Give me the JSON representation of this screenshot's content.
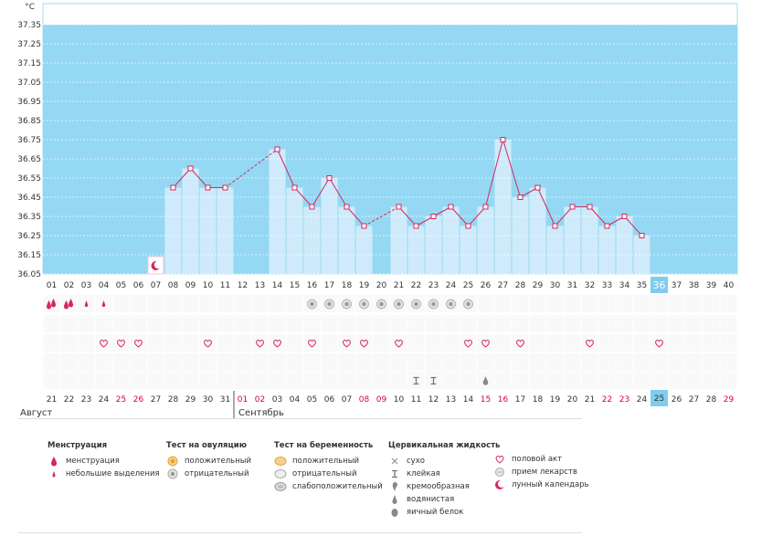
{
  "chart_data": {
    "type": "bar",
    "unit_label": "°C",
    "y_ticks": [
      "36.05",
      "36.15",
      "36.25",
      "36.35",
      "36.45",
      "36.55",
      "36.65",
      "36.75",
      "36.85",
      "36.95",
      "37.05",
      "37.15",
      "37.25",
      "37.35"
    ],
    "ylim": [
      36.05,
      37.35
    ],
    "cycle_days": [
      "01",
      "02",
      "03",
      "04",
      "05",
      "06",
      "07",
      "08",
      "09",
      "10",
      "11",
      "12",
      "13",
      "14",
      "15",
      "16",
      "17",
      "18",
      "19",
      "20",
      "21",
      "22",
      "23",
      "24",
      "25",
      "26",
      "27",
      "28",
      "29",
      "30",
      "31",
      "32",
      "33",
      "34",
      "35",
      "36",
      "37",
      "38",
      "39",
      "40"
    ],
    "current_cycle_day_index": 35,
    "temperatures": [
      null,
      null,
      null,
      null,
      null,
      null,
      null,
      36.5,
      36.6,
      36.5,
      36.5,
      null,
      null,
      36.7,
      36.5,
      36.4,
      36.55,
      36.4,
      36.3,
      null,
      36.4,
      36.3,
      36.35,
      36.4,
      36.3,
      36.4,
      36.75,
      36.45,
      36.5,
      36.3,
      36.4,
      36.4,
      36.3,
      36.35,
      36.25,
      null,
      null,
      null,
      null,
      null
    ],
    "moon_day_index": 6,
    "dates": [
      "21",
      "22",
      "23",
      "24",
      "25",
      "26",
      "27",
      "28",
      "29",
      "30",
      "31",
      "01",
      "02",
      "03",
      "04",
      "05",
      "06",
      "07",
      "08",
      "09",
      "10",
      "11",
      "12",
      "13",
      "14",
      "15",
      "16",
      "17",
      "18",
      "19",
      "20",
      "21",
      "22",
      "23",
      "24",
      "25",
      "26",
      "27",
      "28",
      "29"
    ],
    "weekend_indexes": [
      4,
      5,
      11,
      12,
      18,
      19,
      25,
      26,
      32,
      33,
      39
    ],
    "current_date_index": 35,
    "marker_rows": {
      "menstruation_heavy": [
        0,
        1
      ],
      "menstruation_light": [
        2,
        3
      ],
      "ovulation_negative": [
        15,
        16,
        17,
        18,
        19,
        20,
        21,
        22,
        23,
        24
      ],
      "intercourse": [
        3,
        4,
        5,
        9,
        12,
        13,
        15,
        17,
        18,
        20,
        24,
        25,
        27,
        31,
        35
      ],
      "cervical_sticky": [
        21,
        22
      ],
      "cervical_watery": [
        25
      ]
    },
    "band_color": "#94d8f3",
    "bar_color": "#cfebfb",
    "line_color": "#d6285d",
    "weekend_color": "#d6004f",
    "highlight_color": "#7fccee"
  },
  "months": {
    "first": "Август",
    "second": "Сентябрь"
  },
  "legend": {
    "menstruation": {
      "title": "Менструация",
      "items": [
        {
          "icon": "menstruation-drop-icon",
          "label": "менструация"
        },
        {
          "icon": "small-drop-icon",
          "label": "небольшие выделения"
        }
      ]
    },
    "ovulation_test": {
      "title": "Тест на овуляцию",
      "items": [
        {
          "icon": "positive-ovulation-icon",
          "label": "положительный"
        },
        {
          "icon": "negative-ovulation-icon",
          "label": "отрицательный"
        }
      ]
    },
    "pregnancy_test": {
      "title": "Тест на беременность",
      "items": [
        {
          "icon": "positive-pregnancy-icon",
          "label": "положительный"
        },
        {
          "icon": "negative-pregnancy-icon",
          "label": "отрицательный"
        },
        {
          "icon": "weak-pregnancy-icon",
          "label": "слабоположительный"
        }
      ]
    },
    "cervical": {
      "title": "Цервикальная жидкость",
      "items": [
        {
          "icon": "dry-icon",
          "label": "сухо"
        },
        {
          "icon": "sticky-icon",
          "label": "клейкая"
        },
        {
          "icon": "creamy-icon",
          "label": "кремообразная"
        },
        {
          "icon": "watery-icon",
          "label": "водянистая"
        },
        {
          "icon": "eggwhite-icon",
          "label": "яичный белок"
        }
      ]
    },
    "other": {
      "items": [
        {
          "icon": "heart-icon",
          "label": "половой акт"
        },
        {
          "icon": "pill-icon",
          "label": "прием лекарств"
        },
        {
          "icon": "moon-icon",
          "label": "лунный календарь"
        }
      ]
    }
  }
}
